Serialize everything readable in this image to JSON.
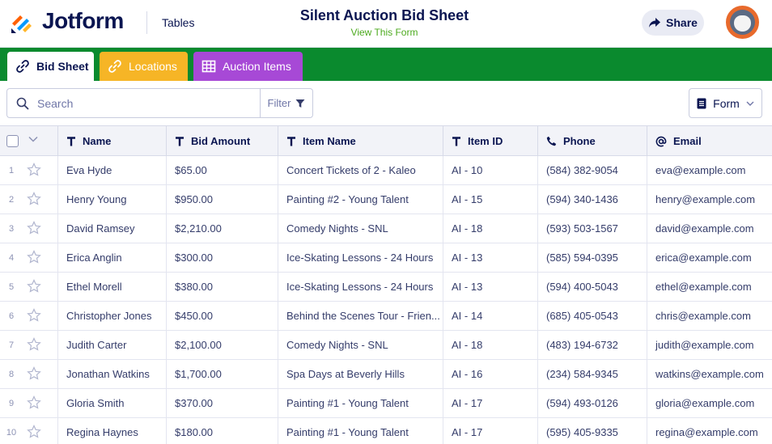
{
  "header": {
    "logo_text": "Jotform",
    "product": "Tables",
    "title": "Silent Auction Bid Sheet",
    "view_form": "View This Form",
    "share_label": "Share"
  },
  "tabs": [
    {
      "label": "Bid Sheet",
      "icon": "link-icon",
      "color": "#ffffff"
    },
    {
      "label": "Locations",
      "icon": "link-icon",
      "color": "#f6b526"
    },
    {
      "label": "Auction Items",
      "icon": "grid-icon",
      "color": "#a749d6"
    }
  ],
  "toolbar": {
    "search_placeholder": "Search",
    "filter_label": "Filter",
    "form_label": "Form"
  },
  "table": {
    "columns": [
      {
        "label": "Name",
        "icon": "text-type-icon"
      },
      {
        "label": "Bid Amount",
        "icon": "text-type-icon"
      },
      {
        "label": "Item Name",
        "icon": "text-type-icon"
      },
      {
        "label": "Item ID",
        "icon": "text-type-icon"
      },
      {
        "label": "Phone",
        "icon": "phone-icon"
      },
      {
        "label": "Email",
        "icon": "at-sign-icon"
      }
    ],
    "rows": [
      {
        "num": "1",
        "cells": [
          "Eva Hyde",
          "$65.00",
          "Concert Tickets of 2 - Kaleo",
          "AI - 10",
          "(584) 382-9054",
          "eva@example.com"
        ]
      },
      {
        "num": "2",
        "cells": [
          "Henry Young",
          "$950.00",
          "Painting #2 - Young Talent",
          "AI - 15",
          "(594) 340-1436",
          "henry@example.com"
        ]
      },
      {
        "num": "3",
        "cells": [
          "David Ramsey",
          "$2,210.00",
          "Comedy Nights - SNL",
          "AI - 18",
          "(593) 503-1567",
          "david@example.com"
        ]
      },
      {
        "num": "4",
        "cells": [
          "Erica Anglin",
          "$300.00",
          "Ice-Skating Lessons - 24 Hours",
          "AI - 13",
          "(585) 594-0395",
          "erica@example.com"
        ]
      },
      {
        "num": "5",
        "cells": [
          "Ethel Morell",
          "$380.00",
          "Ice-Skating Lessons - 24 Hours",
          "AI - 13",
          "(594) 400-5043",
          "ethel@example.com"
        ]
      },
      {
        "num": "6",
        "cells": [
          "Christopher Jones",
          "$450.00",
          "Behind the Scenes Tour - Frien...",
          "AI - 14",
          "(685) 405-0543",
          "chris@example.com"
        ]
      },
      {
        "num": "7",
        "cells": [
          "Judith Carter",
          "$2,100.00",
          "Comedy Nights - SNL",
          "AI - 18",
          "(483) 194-6732",
          "judith@example.com"
        ]
      },
      {
        "num": "8",
        "cells": [
          "Jonathan Watkins",
          "$1,700.00",
          "Spa Days at Beverly Hills",
          "AI - 16",
          "(234) 584-9345",
          "watkins@example.com"
        ]
      },
      {
        "num": "9",
        "cells": [
          "Gloria Smith",
          "$370.00",
          "Painting #1 - Young Talent",
          "AI - 17",
          "(594) 493-0126",
          "gloria@example.com"
        ]
      },
      {
        "num": "10",
        "cells": [
          "Regina Haynes",
          "$180.00",
          "Painting #1 - Young Talent",
          "AI - 17",
          "(595) 405-9335",
          "regina@example.com"
        ]
      }
    ]
  },
  "colors": {
    "brand_navy": "#0a1551",
    "tabbar_green": "#0a8a2e",
    "tab_locations": "#f6b526",
    "tab_auction_items": "#a749d6",
    "view_form_link": "#4caa1e"
  }
}
